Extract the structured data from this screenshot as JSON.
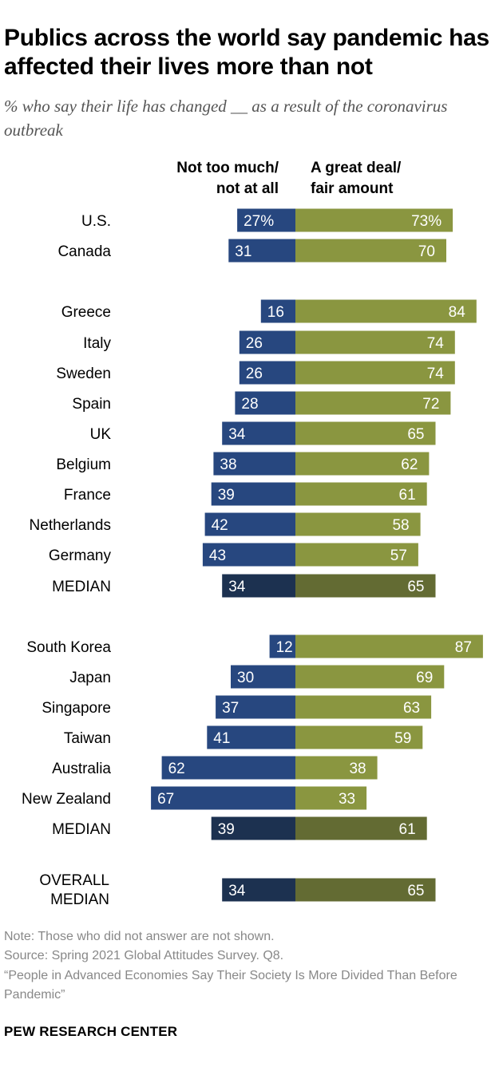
{
  "title": "Publics across the world say pandemic has affected their lives more than not",
  "subtitle": "% who say their life has changed __ as a result of the coronavirus outbreak",
  "chart_data": {
    "type": "bar",
    "orientation": "horizontal-diverging",
    "series": [
      {
        "name": "Not too much/ not at all",
        "color": "#27477f",
        "median_color": "#1c3150"
      },
      {
        "name": "A great deal/ fair amount",
        "color": "#8a9640",
        "median_color": "#636b33"
      }
    ],
    "rows": [
      {
        "label": "U.S.",
        "left": 27,
        "right": 73,
        "left_text": "27%",
        "right_text": "73%",
        "median": false
      },
      {
        "label": "Canada",
        "left": 31,
        "right": 70,
        "left_text": "31",
        "right_text": "70",
        "median": false
      },
      {
        "label": "Greece",
        "left": 16,
        "right": 84,
        "left_text": "16",
        "right_text": "84",
        "median": false
      },
      {
        "label": "Italy",
        "left": 26,
        "right": 74,
        "left_text": "26",
        "right_text": "74",
        "median": false
      },
      {
        "label": "Sweden",
        "left": 26,
        "right": 74,
        "left_text": "26",
        "right_text": "74",
        "median": false
      },
      {
        "label": "Spain",
        "left": 28,
        "right": 72,
        "left_text": "28",
        "right_text": "72",
        "median": false
      },
      {
        "label": "UK",
        "left": 34,
        "right": 65,
        "left_text": "34",
        "right_text": "65",
        "median": false
      },
      {
        "label": "Belgium",
        "left": 38,
        "right": 62,
        "left_text": "38",
        "right_text": "62",
        "median": false
      },
      {
        "label": "France",
        "left": 39,
        "right": 61,
        "left_text": "39",
        "right_text": "61",
        "median": false
      },
      {
        "label": "Netherlands",
        "left": 42,
        "right": 58,
        "left_text": "42",
        "right_text": "58",
        "median": false
      },
      {
        "label": "Germany",
        "left": 43,
        "right": 57,
        "left_text": "43",
        "right_text": "57",
        "median": false
      },
      {
        "label": "MEDIAN",
        "left": 34,
        "right": 65,
        "left_text": "34",
        "right_text": "65",
        "median": true
      },
      {
        "label": "South Korea",
        "left": 12,
        "right": 87,
        "left_text": "12",
        "right_text": "87",
        "median": false
      },
      {
        "label": "Japan",
        "left": 30,
        "right": 69,
        "left_text": "30",
        "right_text": "69",
        "median": false
      },
      {
        "label": "Singapore",
        "left": 37,
        "right": 63,
        "left_text": "37",
        "right_text": "63",
        "median": false
      },
      {
        "label": "Taiwan",
        "left": 41,
        "right": 59,
        "left_text": "41",
        "right_text": "59",
        "median": false
      },
      {
        "label": "Australia",
        "left": 62,
        "right": 38,
        "left_text": "62",
        "right_text": "38",
        "median": false
      },
      {
        "label": "New Zealand",
        "left": 67,
        "right": 33,
        "left_text": "67",
        "right_text": "33",
        "median": false
      },
      {
        "label": "MEDIAN",
        "left": 39,
        "right": 61,
        "left_text": "39",
        "right_text": "61",
        "median": true
      },
      {
        "label": "OVERALL MEDIAN",
        "left": 34,
        "right": 65,
        "left_text": "34",
        "right_text": "65",
        "median": true
      }
    ]
  },
  "footer": {
    "note": "Note: Those who did not answer are not shown.",
    "source": "Source: Spring 2021 Global Attitudes Survey. Q8.",
    "report": "“People in Advanced Economies Say Their Society Is More Divided Than Before Pandemic”",
    "brand": "PEW RESEARCH CENTER"
  }
}
